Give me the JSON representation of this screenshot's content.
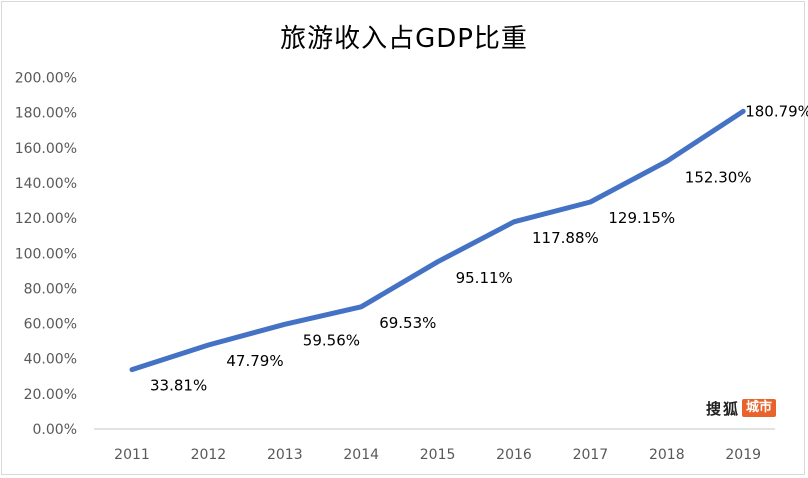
{
  "chart_data": {
    "type": "line",
    "title": "旅游收入占GDP比重",
    "categories": [
      "2011",
      "2012",
      "2013",
      "2014",
      "2015",
      "2016",
      "2017",
      "2018",
      "2019"
    ],
    "series": [
      {
        "values": [
          33.81,
          47.79,
          59.56,
          69.53,
          95.11,
          117.88,
          129.15,
          152.3,
          180.79
        ],
        "labels": [
          "33.81%",
          "47.79%",
          "59.56%",
          "69.53%",
          "95.11%",
          "117.88%",
          "129.15%",
          "152.30%",
          "180.79%"
        ]
      }
    ],
    "ylim": [
      0,
      200
    ],
    "yticks": [
      "0.00%",
      "20.00%",
      "40.00%",
      "60.00%",
      "80.00%",
      "100.00%",
      "120.00%",
      "140.00%",
      "160.00%",
      "180.00%",
      "200.00%"
    ],
    "grid": false,
    "colors": {
      "line": "#4472c4",
      "axis": "#d9d9d9",
      "text": "#595959"
    }
  },
  "watermark": {
    "brand": "搜狐",
    "badge": "城市",
    "badge_color": "#e8622c"
  }
}
